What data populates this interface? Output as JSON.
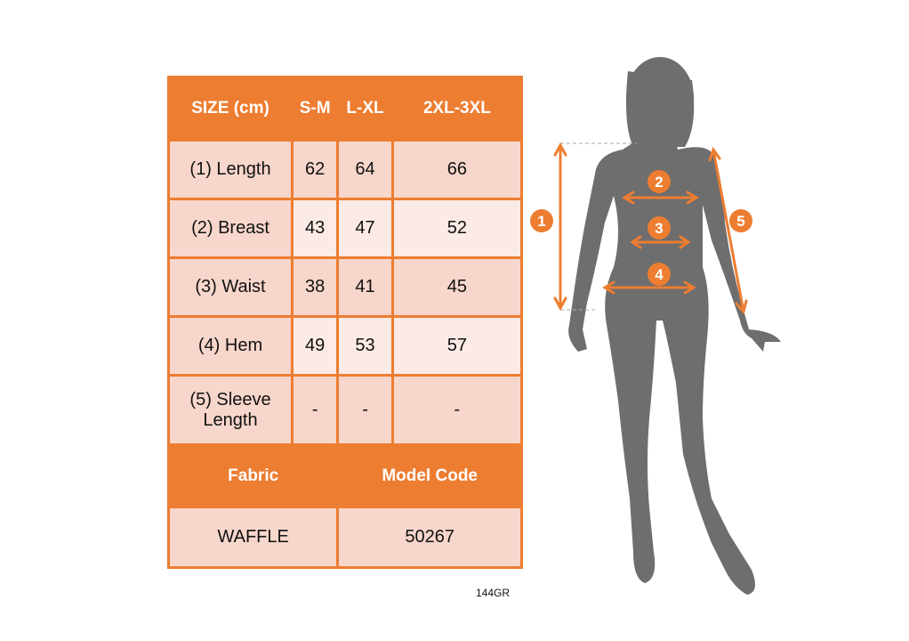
{
  "header": {
    "label": "SIZE (cm)",
    "sizes": [
      "S-M",
      "L-XL",
      "2XL-3XL"
    ]
  },
  "rows": [
    {
      "label": "(1) Length",
      "values": [
        "62",
        "64",
        "66"
      ]
    },
    {
      "label": "(2) Breast",
      "values": [
        "43",
        "47",
        "52"
      ]
    },
    {
      "label": "(3) Waist",
      "values": [
        "38",
        "41",
        "45"
      ]
    },
    {
      "label": "(4) Hem",
      "values": [
        "49",
        "53",
        "57"
      ]
    },
    {
      "label": "(5) Sleeve Length",
      "values": [
        "-",
        "-",
        "-"
      ]
    }
  ],
  "footer": {
    "fabric_label": "Fabric",
    "model_code_label": "Model Code",
    "fabric": "WAFFLE",
    "model_code": "50267"
  },
  "product_code": "144GR",
  "markers": [
    "1",
    "2",
    "3",
    "4",
    "5"
  ],
  "colors": {
    "accent": "#ED7D31",
    "row_dark": "#F7D6CB",
    "row_light": "#FBEAE5",
    "silhouette": "#6E6E6E"
  }
}
